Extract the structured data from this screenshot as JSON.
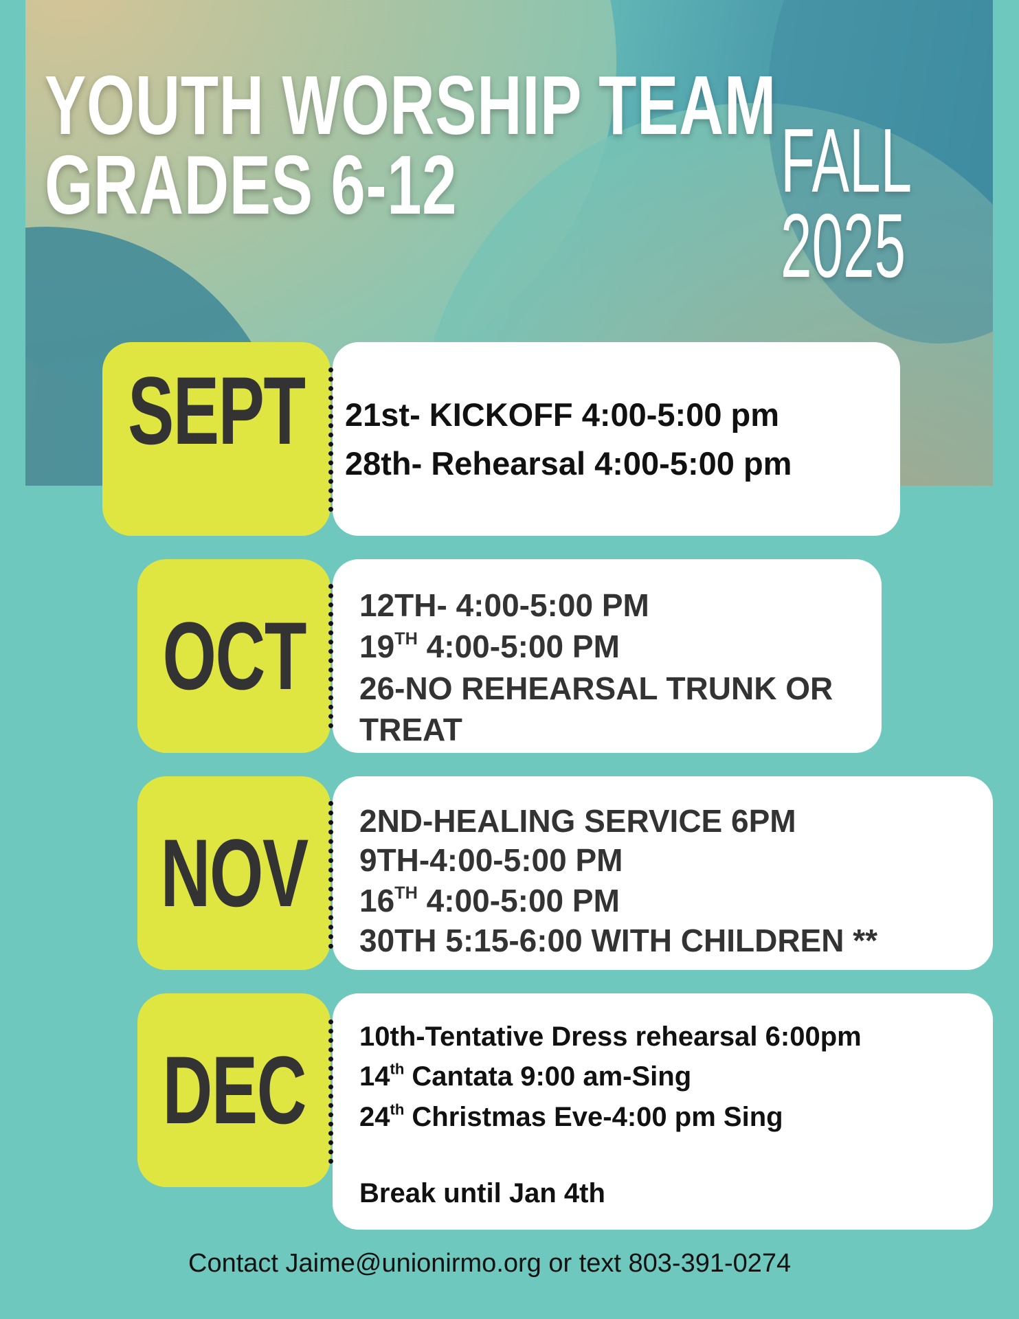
{
  "header": {
    "title_line1": "YOUTH WORSHIP TEAM",
    "title_line2": "GRADES 6-12",
    "season": "FALL",
    "year": "2025"
  },
  "colors": {
    "background": "#6ec8be",
    "month_box": "#e0e641",
    "card": "#ffffff",
    "text": "#333333"
  },
  "months": [
    {
      "label": "SEPT",
      "events": [
        {
          "text": "21st-  KICKOFF 4:00-5:00 pm"
        },
        {
          "text": "28th- Rehearsal 4:00-5:00 pm"
        }
      ]
    },
    {
      "label": "OCT",
      "events": [
        {
          "text": "12TH- 4:00-5:00 PM"
        },
        {
          "pre": "19",
          "sup": "TH",
          "text": " 4:00-5:00 PM"
        },
        {
          "text": "26-NO REHEARSAL TRUNK OR"
        },
        {
          "text": "TREAT"
        }
      ]
    },
    {
      "label": "NOV",
      "events": [
        {
          "text": "2ND-HEALING SERVICE 6PM"
        },
        {
          "text": "9TH-4:00-5:00 PM"
        },
        {
          "pre": "16",
          "sup": "TH",
          "text": " 4:00-5:00 PM"
        },
        {
          "text": "30TH 5:15-6:00 WITH CHILDREN **"
        }
      ]
    },
    {
      "label": "DEC",
      "events": [
        {
          "text": "10th-Tentative Dress rehearsal 6:00pm"
        },
        {
          "pre": "14",
          "sup": "th",
          "text": " Cantata 9:00 am-Sing"
        },
        {
          "pre": "24",
          "sup": "th",
          "text": " Christmas Eve-4:00 pm Sing"
        },
        {
          "text": "Break until Jan 4th"
        }
      ]
    }
  ],
  "footer": {
    "contact": "Contact Jaime@unionirmo.org or text 803-391-0274"
  }
}
